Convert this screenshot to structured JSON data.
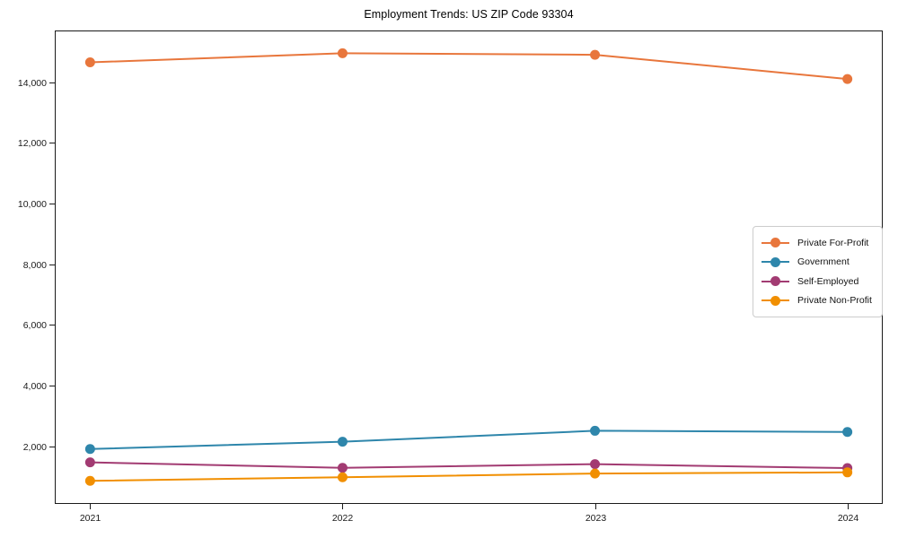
{
  "chart_data": {
    "type": "line",
    "title": "Employment Trends: US ZIP Code 93304",
    "x": [
      "2021",
      "2022",
      "2023",
      "2024"
    ],
    "series": [
      {
        "name": "Private For-Profit",
        "color": "#E8763C",
        "values": [
          14650,
          14950,
          14900,
          14100
        ]
      },
      {
        "name": "Government",
        "color": "#2E86AB",
        "values": [
          1910,
          2150,
          2510,
          2470
        ]
      },
      {
        "name": "Self-Employed",
        "color": "#A23B72",
        "values": [
          1470,
          1290,
          1410,
          1280
        ]
      },
      {
        "name": "Private Non-Profit",
        "color": "#F18F01",
        "values": [
          860,
          980,
          1100,
          1140
        ]
      }
    ],
    "xlabel": "",
    "ylabel": "",
    "ylim": [
      100,
      15700
    ],
    "yticks": [
      2000,
      4000,
      6000,
      8000,
      10000,
      12000,
      14000
    ],
    "grid": false,
    "legend_position": "center-right",
    "axis_color": "#1a1a1a",
    "background": "#ffffff"
  }
}
